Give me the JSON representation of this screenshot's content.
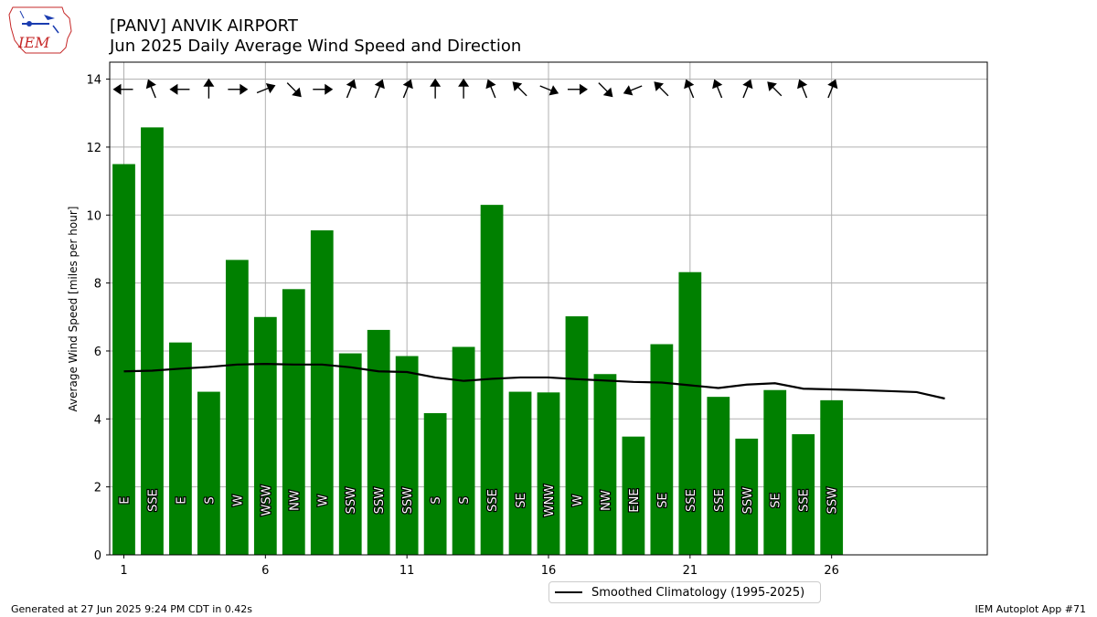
{
  "header": {
    "title_line1": "[PANV] ANVIK AIRPORT",
    "title_line2": "Jun 2025 Daily Average Wind Speed and Direction",
    "logo_text": "IEM"
  },
  "footer": {
    "left": "Generated at 27 Jun 2025 9:24 PM CDT in 0.42s",
    "right": "IEM Autoplot App #71"
  },
  "legend": {
    "climatology_label": "Smoothed Climatology (1995-2025)"
  },
  "colors": {
    "bar": "#008000",
    "climatology": "#000000",
    "grid": "#b0b0b0"
  },
  "chart_data": {
    "type": "bar",
    "title": "Jun 2025 Daily Average Wind Speed and Direction",
    "ylabel": "Average Wind Speed [miles per hour]",
    "xlabel": "",
    "xlim": [
      0.5,
      31.5
    ],
    "ylim": [
      0,
      14.5
    ],
    "xticks": [
      1,
      6,
      11,
      16,
      21,
      26
    ],
    "yticks": [
      0,
      2,
      4,
      6,
      8,
      10,
      12,
      14
    ],
    "grid": true,
    "legend_position": "bottom-center",
    "days": [
      1,
      2,
      3,
      4,
      5,
      6,
      7,
      8,
      9,
      10,
      11,
      12,
      13,
      14,
      15,
      16,
      17,
      18,
      19,
      20,
      21,
      22,
      23,
      24,
      25,
      26
    ],
    "speed": [
      11.5,
      12.58,
      6.25,
      4.8,
      8.68,
      7.0,
      7.82,
      9.55,
      5.93,
      6.62,
      5.85,
      4.17,
      6.12,
      10.3,
      4.8,
      4.78,
      7.02,
      5.32,
      3.48,
      6.2,
      8.32,
      4.65,
      3.42,
      4.85,
      3.55,
      4.55
    ],
    "direction_label": [
      "E",
      "SSE",
      "E",
      "S",
      "W",
      "WSW",
      "NW",
      "W",
      "SSW",
      "SSW",
      "SSW",
      "S",
      "S",
      "SSE",
      "SE",
      "WNW",
      "W",
      "NW",
      "ENE",
      "SE",
      "SSE",
      "SSE",
      "SSW",
      "SE",
      "SSE",
      "SSW"
    ],
    "direction_deg": [
      90,
      158,
      90,
      180,
      270,
      248,
      315,
      270,
      202,
      202,
      202,
      180,
      180,
      158,
      135,
      292,
      270,
      315,
      68,
      135,
      158,
      158,
      202,
      135,
      158,
      202
    ],
    "climatology": {
      "name": "Smoothed Climatology (1995-2025)",
      "x": [
        1,
        2,
        3,
        4,
        5,
        6,
        7,
        8,
        9,
        10,
        11,
        12,
        13,
        14,
        15,
        16,
        17,
        18,
        19,
        20,
        21,
        22,
        23,
        24,
        25,
        26,
        27,
        28,
        29,
        30
      ],
      "y": [
        5.4,
        5.42,
        5.48,
        5.53,
        5.6,
        5.62,
        5.6,
        5.6,
        5.52,
        5.4,
        5.38,
        5.22,
        5.12,
        5.18,
        5.22,
        5.22,
        5.17,
        5.13,
        5.09,
        5.07,
        4.99,
        4.91,
        5.01,
        5.05,
        4.89,
        4.87,
        4.85,
        4.82,
        4.79,
        4.6
      ]
    }
  }
}
